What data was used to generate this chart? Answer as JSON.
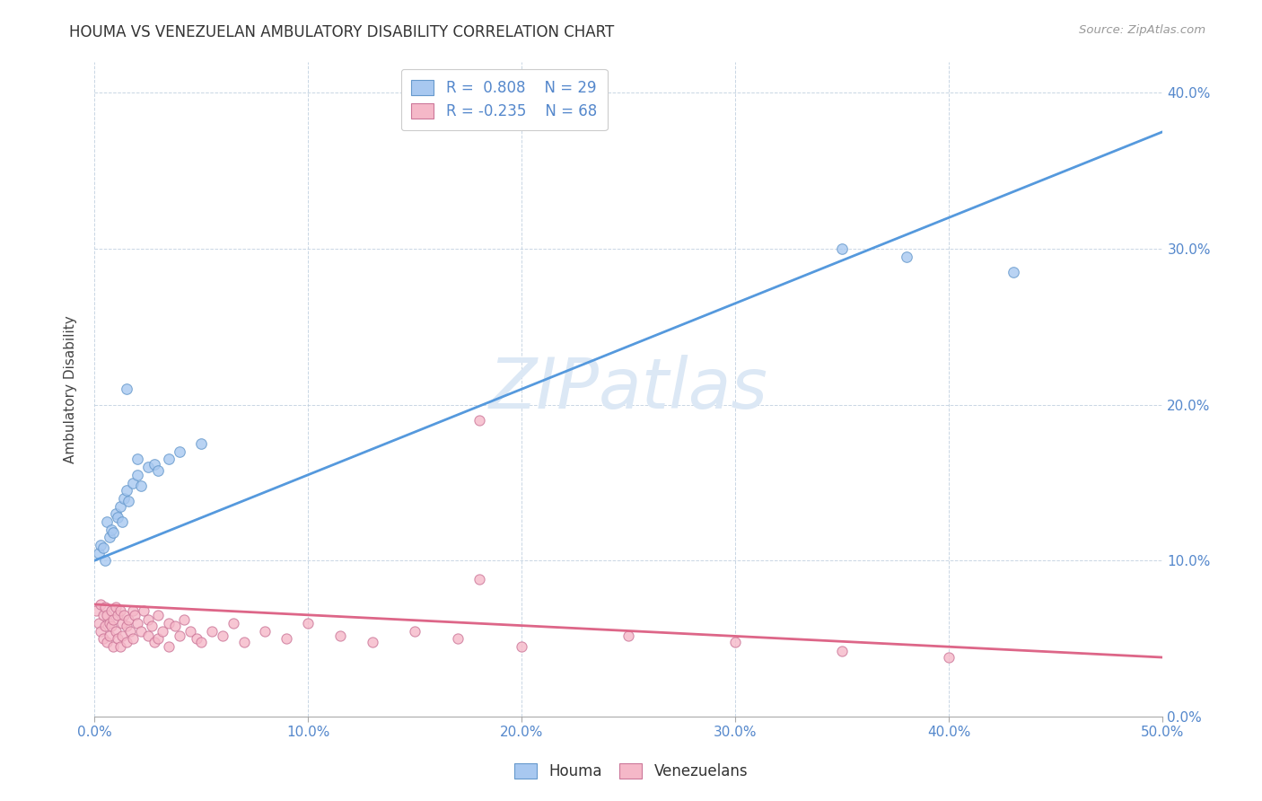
{
  "title": "HOUMA VS VENEZUELAN AMBULATORY DISABILITY CORRELATION CHART",
  "source": "Source: ZipAtlas.com",
  "ylabel": "Ambulatory Disability",
  "houma_color": "#a8c8f0",
  "houma_edge_color": "#6699cc",
  "venezuelan_color": "#f5b8c8",
  "venezuelan_edge_color": "#cc7799",
  "line_houma_color": "#5599dd",
  "line_venezuelan_color": "#dd6688",
  "watermark": "ZIPatlas",
  "watermark_color": "#dce8f5",
  "legend_r_houma": "R =  0.808",
  "legend_n_houma": "N = 29",
  "legend_r_venezuelan": "R = -0.235",
  "legend_n_venezuelan": "N = 68",
  "houma_line_x0": 0.0,
  "houma_line_y0": 0.1,
  "houma_line_x1": 0.5,
  "houma_line_y1": 0.375,
  "venz_line_x0": 0.0,
  "venz_line_y0": 0.072,
  "venz_line_x1": 0.5,
  "venz_line_y1": 0.038,
  "xlim": [
    0.0,
    0.5
  ],
  "ylim": [
    0.0,
    0.42
  ],
  "xtick_vals": [
    0.0,
    0.1,
    0.2,
    0.3,
    0.4,
    0.5
  ],
  "ytick_vals": [
    0.0,
    0.1,
    0.2,
    0.3,
    0.4
  ],
  "houma_pts_x": [
    0.002,
    0.003,
    0.004,
    0.005,
    0.006,
    0.007,
    0.008,
    0.009,
    0.01,
    0.011,
    0.012,
    0.013,
    0.014,
    0.015,
    0.016,
    0.018,
    0.02,
    0.022,
    0.025,
    0.028,
    0.03,
    0.035,
    0.04,
    0.05,
    0.015,
    0.02,
    0.35,
    0.38,
    0.43
  ],
  "houma_pts_y": [
    0.105,
    0.11,
    0.108,
    0.1,
    0.125,
    0.115,
    0.12,
    0.118,
    0.13,
    0.128,
    0.135,
    0.125,
    0.14,
    0.145,
    0.138,
    0.15,
    0.155,
    0.148,
    0.16,
    0.162,
    0.158,
    0.165,
    0.17,
    0.175,
    0.21,
    0.165,
    0.3,
    0.295,
    0.285
  ],
  "venz_pts_x": [
    0.001,
    0.002,
    0.003,
    0.003,
    0.004,
    0.004,
    0.005,
    0.005,
    0.006,
    0.006,
    0.007,
    0.007,
    0.008,
    0.008,
    0.009,
    0.009,
    0.01,
    0.01,
    0.011,
    0.011,
    0.012,
    0.012,
    0.013,
    0.013,
    0.014,
    0.015,
    0.015,
    0.016,
    0.017,
    0.018,
    0.018,
    0.019,
    0.02,
    0.022,
    0.023,
    0.025,
    0.025,
    0.027,
    0.028,
    0.03,
    0.03,
    0.032,
    0.035,
    0.035,
    0.038,
    0.04,
    0.042,
    0.045,
    0.048,
    0.05,
    0.055,
    0.06,
    0.065,
    0.07,
    0.08,
    0.09,
    0.1,
    0.115,
    0.13,
    0.15,
    0.17,
    0.2,
    0.25,
    0.3,
    0.35,
    0.4,
    0.18,
    0.18
  ],
  "venz_pts_y": [
    0.068,
    0.06,
    0.072,
    0.055,
    0.065,
    0.05,
    0.07,
    0.058,
    0.065,
    0.048,
    0.06,
    0.052,
    0.068,
    0.058,
    0.062,
    0.045,
    0.07,
    0.055,
    0.065,
    0.05,
    0.068,
    0.045,
    0.06,
    0.052,
    0.065,
    0.058,
    0.048,
    0.062,
    0.055,
    0.068,
    0.05,
    0.065,
    0.06,
    0.055,
    0.068,
    0.052,
    0.062,
    0.058,
    0.048,
    0.065,
    0.05,
    0.055,
    0.06,
    0.045,
    0.058,
    0.052,
    0.062,
    0.055,
    0.05,
    0.048,
    0.055,
    0.052,
    0.06,
    0.048,
    0.055,
    0.05,
    0.06,
    0.052,
    0.048,
    0.055,
    0.05,
    0.045,
    0.052,
    0.048,
    0.042,
    0.038,
    0.088,
    0.19
  ]
}
